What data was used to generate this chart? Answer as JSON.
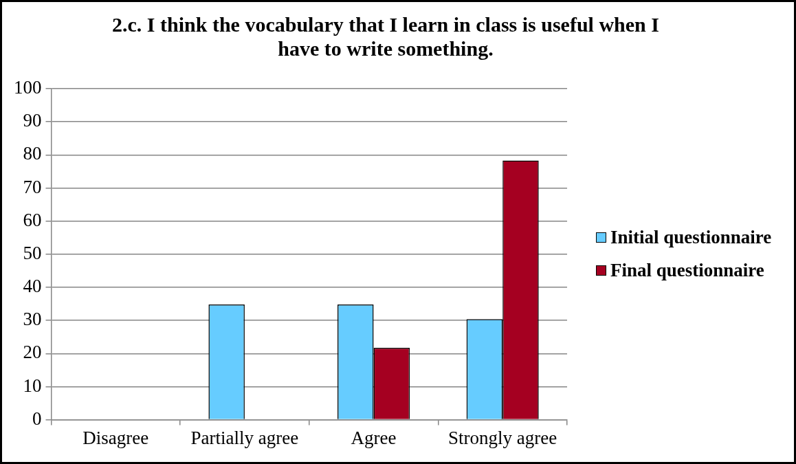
{
  "chart_data": {
    "type": "bar",
    "title": "2.c. I think the vocabulary that I learn in class is useful when I have to write something.",
    "categories": [
      "Disagree",
      "Partially agree",
      "Agree",
      "Strongly agree"
    ],
    "series": [
      {
        "name": "Initial questionnaire",
        "color": "#66ccff",
        "values": [
          0,
          34.8,
          34.8,
          30.4
        ]
      },
      {
        "name": "Final questionnaire",
        "color": "#a50021",
        "values": [
          0,
          0,
          21.7,
          78.3
        ]
      }
    ],
    "ylim": [
      0,
      100
    ],
    "yticks": [
      0,
      10,
      20,
      30,
      40,
      50,
      60,
      70,
      80,
      90,
      100
    ],
    "grid": "y",
    "legend": "right"
  }
}
